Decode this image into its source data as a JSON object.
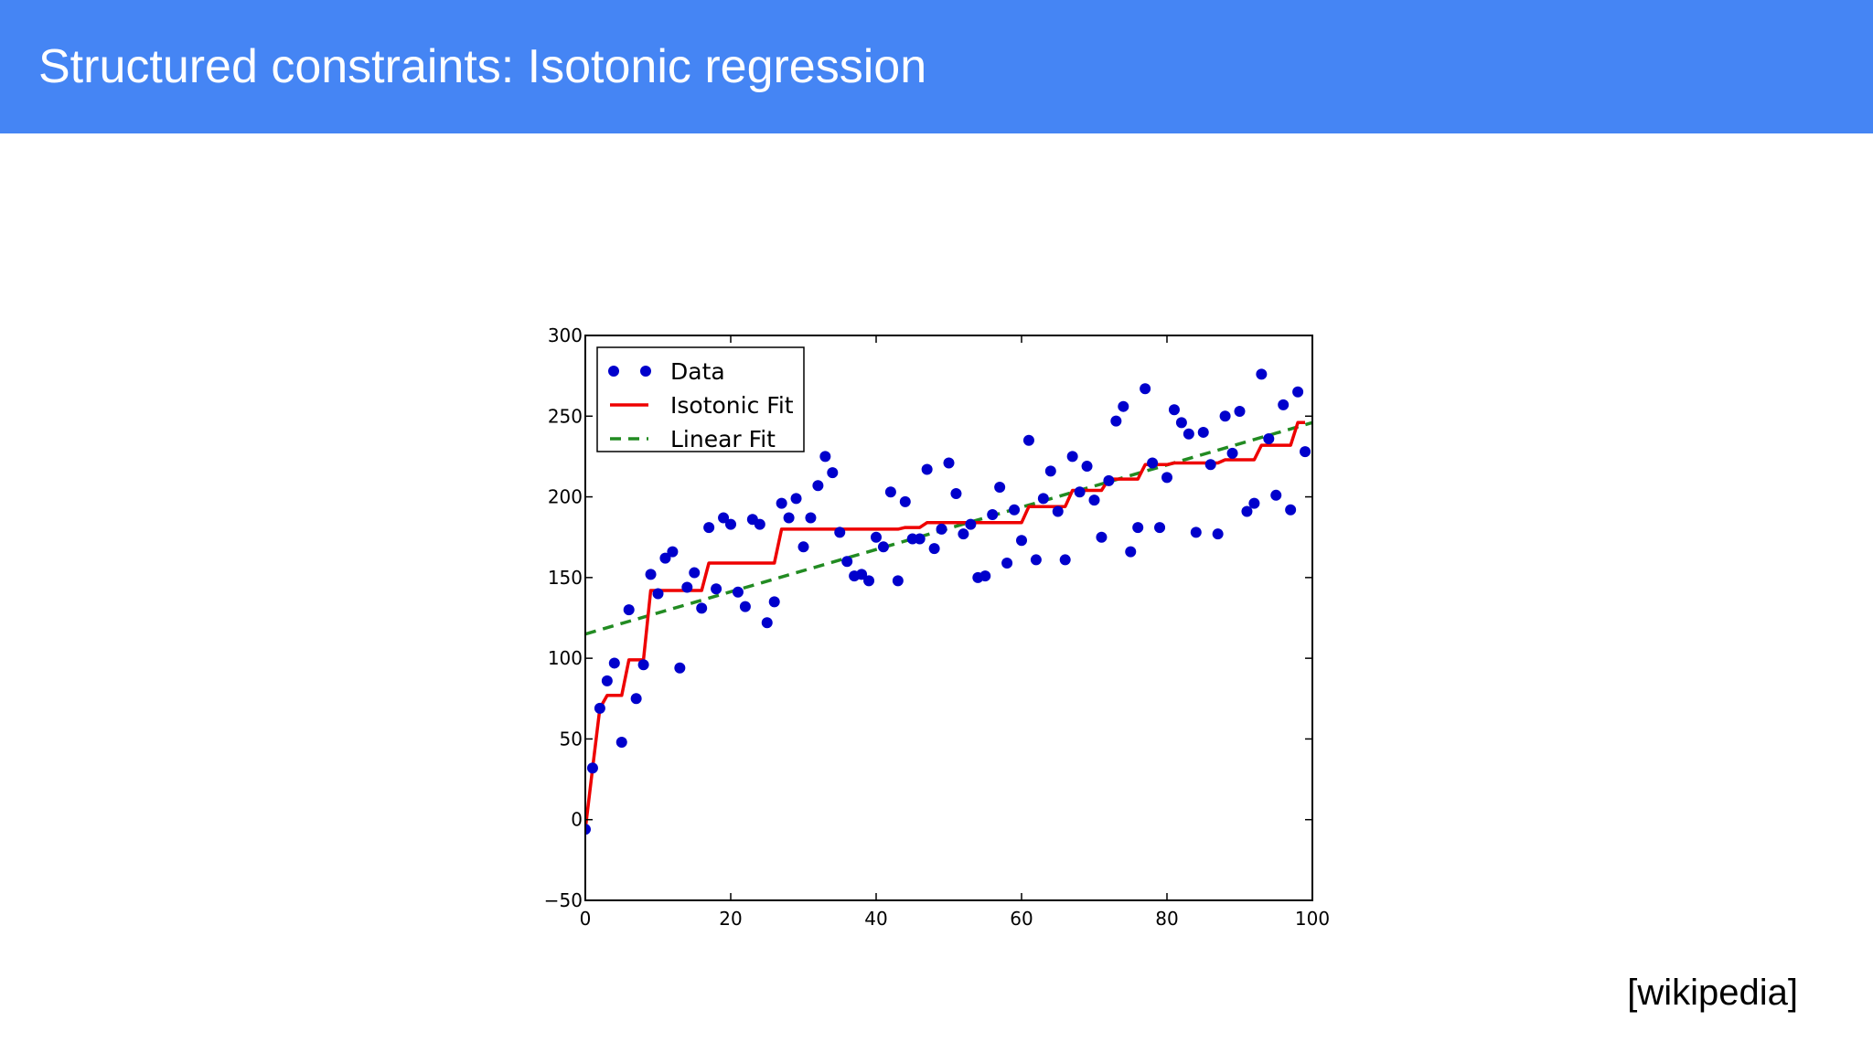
{
  "slide": {
    "title": "Structured constraints: Isotonic regression",
    "citation": "[wikipedia]",
    "header_color": "#4585f4"
  },
  "chart_data": {
    "type": "scatter",
    "xlim": [
      0,
      100
    ],
    "ylim": [
      -50,
      300
    ],
    "x_ticks": [
      0,
      20,
      40,
      60,
      80,
      100
    ],
    "y_ticks": [
      -50,
      0,
      50,
      100,
      150,
      200,
      250,
      300
    ],
    "x_tick_labels": [
      "0",
      "20",
      "40",
      "60",
      "80",
      "100"
    ],
    "y_tick_labels": [
      "−50",
      "0",
      "50",
      "100",
      "150",
      "200",
      "250",
      "300"
    ],
    "grid": false,
    "legend_position": "top-left",
    "series": [
      {
        "name": "Data",
        "kind": "points",
        "color": "#0000cc",
        "x": [
          0,
          1,
          2,
          3,
          4,
          5,
          6,
          7,
          8,
          9,
          10,
          11,
          12,
          13,
          14,
          15,
          16,
          17,
          18,
          19,
          20,
          21,
          22,
          23,
          24,
          25,
          26,
          27,
          28,
          29,
          30,
          31,
          32,
          33,
          34,
          35,
          36,
          37,
          38,
          39,
          40,
          41,
          42,
          43,
          44,
          45,
          46,
          47,
          48,
          49,
          50,
          51,
          52,
          53,
          54,
          55,
          56,
          57,
          58,
          59,
          60,
          61,
          62,
          63,
          64,
          65,
          66,
          67,
          68,
          69,
          70,
          71,
          72,
          73,
          74,
          75,
          76,
          77,
          78,
          79,
          80,
          81,
          82,
          83,
          84,
          85,
          86,
          87,
          88,
          89,
          90,
          91,
          92,
          93,
          94,
          95,
          96,
          97,
          98,
          99
        ],
        "y": [
          -6,
          32,
          69,
          86,
          97,
          48,
          130,
          75,
          96,
          152,
          140,
          162,
          166,
          94,
          144,
          153,
          131,
          181,
          143,
          187,
          183,
          141,
          132,
          186,
          183,
          122,
          135,
          196,
          187,
          199,
          169,
          187,
          207,
          225,
          215,
          178,
          160,
          151,
          152,
          148,
          175,
          169,
          203,
          148,
          197,
          174,
          174,
          217,
          168,
          180,
          221,
          202,
          177,
          183,
          150,
          151,
          189,
          206,
          159,
          192,
          173,
          235,
          161,
          199,
          216,
          191,
          161,
          225,
          203,
          219,
          198,
          175,
          210,
          247,
          256,
          166,
          181,
          267,
          221,
          181,
          212,
          254,
          246,
          239,
          178,
          240,
          220,
          177,
          250,
          227,
          253,
          191,
          196,
          276,
          236,
          201,
          257,
          192,
          265,
          228
        ]
      },
      {
        "name": "Isotonic Fit",
        "kind": "step-line",
        "color": "#ee0000",
        "x": [
          0,
          1,
          2,
          3,
          4,
          5,
          6,
          7,
          8,
          9,
          10,
          11,
          12,
          13,
          14,
          15,
          16,
          17,
          18,
          19,
          20,
          21,
          22,
          23,
          24,
          25,
          26,
          27,
          28,
          29,
          30,
          31,
          32,
          33,
          34,
          35,
          36,
          37,
          38,
          39,
          40,
          41,
          42,
          43,
          44,
          45,
          46,
          47,
          48,
          49,
          50,
          51,
          52,
          53,
          54,
          55,
          56,
          57,
          58,
          59,
          60,
          61,
          62,
          63,
          64,
          65,
          66,
          67,
          68,
          69,
          70,
          71,
          72,
          73,
          74,
          75,
          76,
          77,
          78,
          79,
          80,
          81,
          82,
          83,
          84,
          85,
          86,
          87,
          88,
          89,
          90,
          91,
          92,
          93,
          94,
          95,
          96,
          97,
          98,
          99
        ],
        "y": [
          -6,
          32,
          69,
          77,
          77,
          77,
          99,
          99,
          99,
          142,
          142,
          142,
          142,
          142,
          142,
          142,
          142,
          159,
          159,
          159,
          159,
          159,
          159,
          159,
          159,
          159,
          159,
          180,
          180,
          180,
          180,
          180,
          180,
          180,
          180,
          180,
          180,
          180,
          180,
          180,
          180,
          180,
          180,
          180,
          181,
          181,
          181,
          184,
          184,
          184,
          184,
          184,
          184,
          184,
          184,
          184,
          184,
          184,
          184,
          184,
          184,
          194,
          194,
          194,
          194,
          194,
          194,
          204,
          204,
          204,
          204,
          204,
          211,
          211,
          211,
          211,
          211,
          220,
          220,
          220,
          220,
          221,
          221,
          221,
          221,
          221,
          221,
          221,
          223,
          223,
          223,
          223,
          223,
          232,
          232,
          232,
          232,
          232,
          246,
          246
        ]
      },
      {
        "name": "Linear Fit",
        "kind": "dashed-line",
        "color": "#228b22",
        "x": [
          0,
          100
        ],
        "y": [
          115,
          246
        ]
      }
    ]
  }
}
